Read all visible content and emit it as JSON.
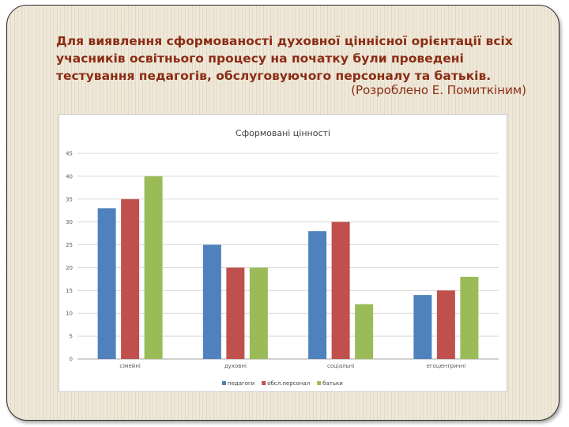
{
  "slide": {
    "heading": "Для виявлення сформованості духовної ціннісної орієнтації всіх учасників освітнього процесу на початку були проведені тестування педагогів, обслуговуючого персоналу та батьків.",
    "author": "(Розроблено Е. Помиткіним)"
  },
  "colors": {
    "heading": "#8b2c14",
    "series": [
      "#4f81bd",
      "#c0504d",
      "#9bbb59"
    ],
    "background": "#efe8d8"
  },
  "chart_data": {
    "type": "bar",
    "title": "Сформовані цінності",
    "categories": [
      "сімейні",
      "духовні",
      "соціальні",
      "егоцентричні"
    ],
    "series": [
      {
        "name": "педагоги",
        "values": [
          33,
          25,
          28,
          14
        ]
      },
      {
        "name": "обсл.персонал",
        "values": [
          35,
          20,
          30,
          15
        ]
      },
      {
        "name": "батьки",
        "values": [
          40,
          20,
          12,
          18
        ]
      }
    ],
    "ylim": [
      0,
      45
    ],
    "yticks": [
      0,
      5,
      10,
      15,
      20,
      25,
      30,
      35,
      40,
      45
    ],
    "grid": true,
    "legend": "bottom"
  }
}
